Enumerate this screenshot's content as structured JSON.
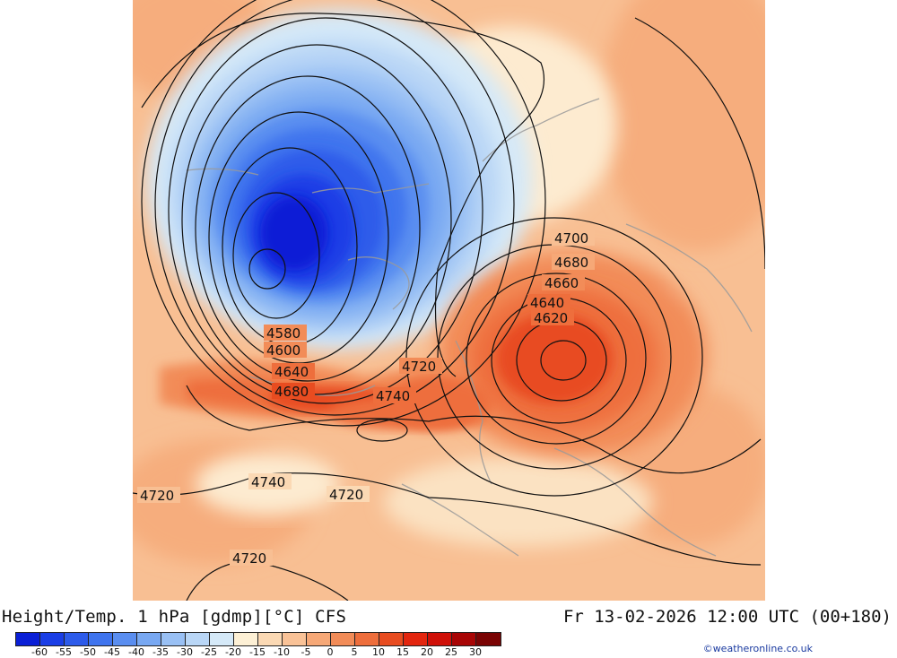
{
  "header": {
    "title": "Height/Temp. 1 hPa [gdmp][°C] CFS",
    "valid_time": "Fr 13-02-2026 12:00 UTC (00+180)"
  },
  "colorbar": {
    "labels": [
      "-60",
      "-55",
      "-50",
      "-45",
      "-40",
      "-35",
      "-30",
      "-25",
      "-20",
      "-15",
      "-10",
      "-5",
      "0",
      "5",
      "10",
      "15",
      "20",
      "25",
      "30"
    ],
    "colors": [
      "#0a1fd6",
      "#1a3ee6",
      "#2d5bea",
      "#3f74ee",
      "#5a8ef0",
      "#78a8f2",
      "#99c0f4",
      "#b9d6f6",
      "#d5e9f8",
      "#fdf0d5",
      "#fbd9b4",
      "#f9c297",
      "#f6a877",
      "#f28c58",
      "#ee6e3c",
      "#e84c20",
      "#e3260f",
      "#cf1008",
      "#a80505",
      "#7a0303"
    ]
  },
  "map": {
    "contour_labels": [
      "4700",
      "4680",
      "4660",
      "4640",
      "4620",
      "4580",
      "4600",
      "4640",
      "4680",
      "4720",
      "4740",
      "4740",
      "4720",
      "4720",
      "4720"
    ]
  },
  "credit": "©weatheronline.co.uk"
}
